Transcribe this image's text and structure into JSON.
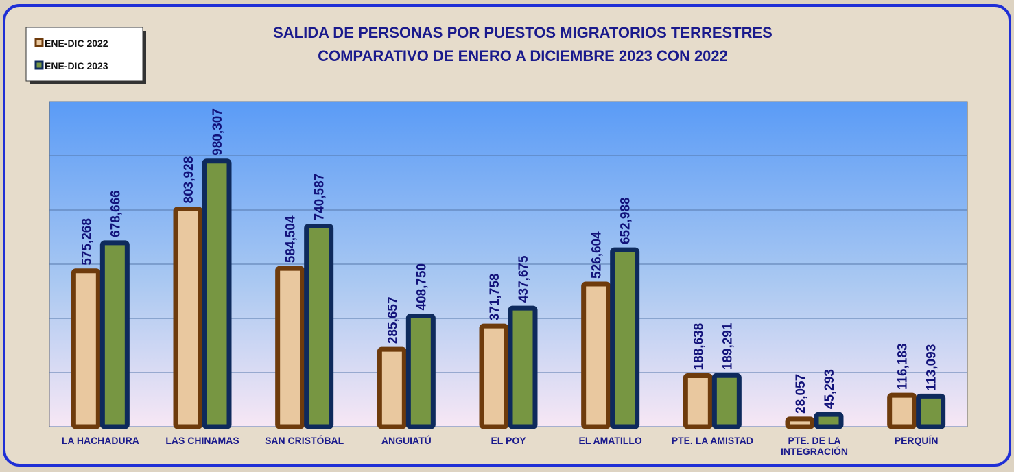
{
  "chart_data": {
    "type": "bar",
    "title": "SALIDA DE PERSONAS POR PUESTOS MIGRATORIOS TERRESTRES",
    "subtitle": "COMPARATIVO DE ENERO A DICIEMBRE 2023 CON 2022",
    "categories": [
      "LA HACHADURA",
      "LAS CHINAMAS",
      "SAN CRISTÓBAL",
      "ANGUIATÚ",
      "EL POY",
      "EL AMATILLO",
      "PTE. LA AMISTAD",
      "PTE. DE LA INTEGRACIÓN",
      "PERQUÍN"
    ],
    "series": [
      {
        "name": "ENE-DIC 2022",
        "color": "#e9c89f",
        "border": "#6e3b0c",
        "values": [
          575268,
          803928,
          584504,
          285657,
          371758,
          526604,
          188638,
          28057,
          116183
        ],
        "value_labels": [
          "575,268",
          "803,928",
          "584,504",
          "285,657",
          "371,758",
          "526,604",
          "188,638",
          "28,057",
          "116,183"
        ]
      },
      {
        "name": "ENE-DIC 2023",
        "color": "#779642",
        "border": "#0e2a5c",
        "values": [
          678666,
          980307,
          740587,
          408750,
          437675,
          652988,
          189291,
          45293,
          113093
        ],
        "value_labels": [
          "678,666",
          "980,307",
          "740,587",
          "408,750",
          "437,675",
          "652,988",
          "189,291",
          "45,293",
          "113,093"
        ]
      }
    ],
    "ylim": [
      0,
      1200000
    ],
    "yticks": [
      0,
      200000,
      400000,
      600000,
      800000,
      1000000,
      1200000
    ],
    "grid": true,
    "legend": "top-left"
  }
}
